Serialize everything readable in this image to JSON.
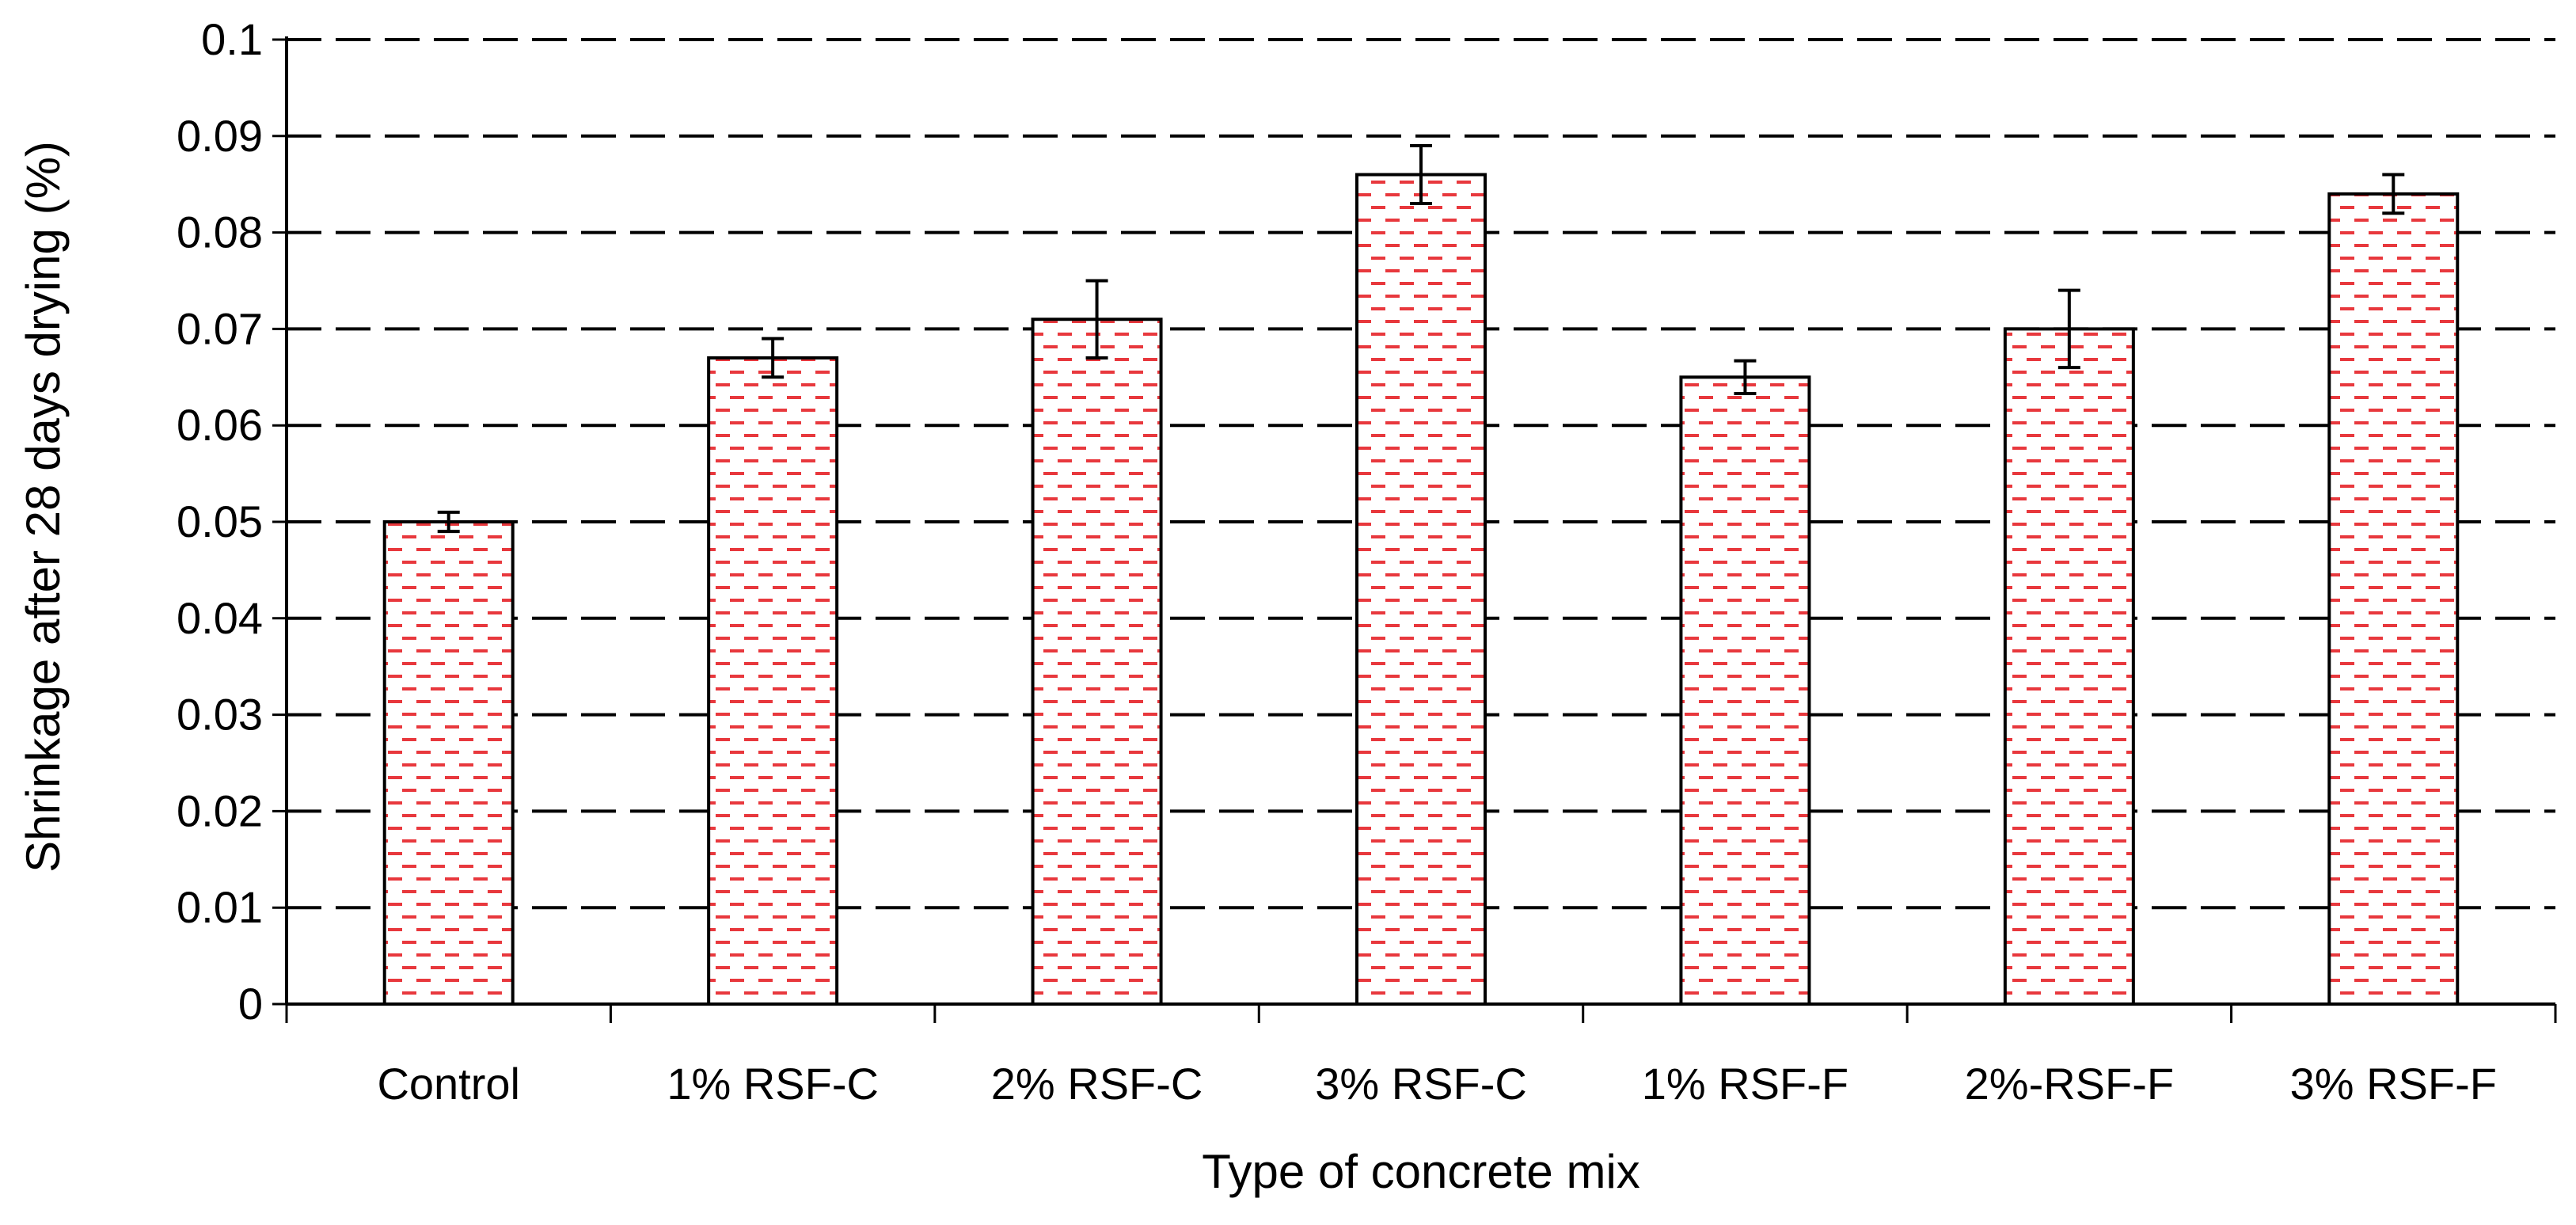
{
  "chart_data": {
    "type": "bar",
    "title": "",
    "xlabel": "Type of concrete mix",
    "ylabel": "Shrinkage after 28 days drying (%)",
    "categories": [
      "Control",
      "1% RSF-C",
      "2% RSF-C",
      "3% RSF-C",
      "1% RSF-F",
      "2%-RSF-F",
      "3% RSF-F"
    ],
    "values": [
      0.05,
      0.067,
      0.071,
      0.086,
      0.065,
      0.07,
      0.084
    ],
    "error": [
      0.001,
      0.002,
      0.004,
      0.003,
      0.0017,
      0.004,
      0.002
    ],
    "ylim": [
      0,
      0.1
    ],
    "yticks": [
      "0",
      "0.01",
      "0.02",
      "0.03",
      "0.04",
      "0.05",
      "0.06",
      "0.07",
      "0.08",
      "0.09",
      "0.1"
    ],
    "grid": "horizontal dashed",
    "legend": "none",
    "colors": {
      "bar_fill": "#ffffff",
      "bar_pattern": "#e8383d",
      "bar_edge": "#000000",
      "grid": "#000000"
    }
  }
}
